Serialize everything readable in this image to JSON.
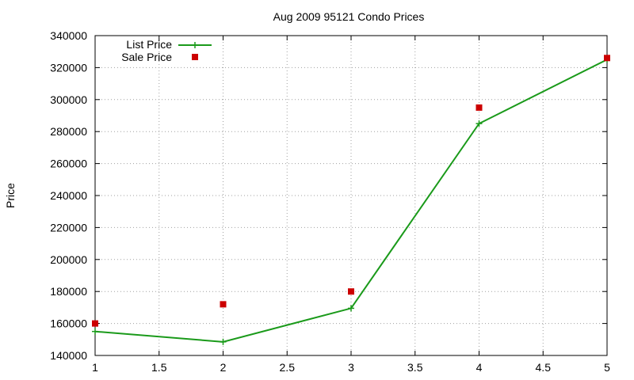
{
  "chart_data": {
    "type": "line",
    "title": "Aug 2009 95121 Condo Prices",
    "xlabel": "",
    "ylabel": "Price",
    "xlim": [
      1,
      5
    ],
    "ylim": [
      140000,
      340000
    ],
    "x_ticks": [
      "1",
      "1.5",
      "2",
      "2.5",
      "3",
      "3.5",
      "4",
      "4.5",
      "5"
    ],
    "y_ticks": [
      "140000",
      "160000",
      "180000",
      "200000",
      "220000",
      "240000",
      "260000",
      "280000",
      "300000",
      "320000",
      "340000"
    ],
    "grid": true,
    "legend_position": "top-left",
    "series": [
      {
        "name": "List Price",
        "style": "linespoints",
        "marker": "plus",
        "color": "#1a9a1a",
        "x": [
          1,
          2,
          3,
          4,
          5
        ],
        "values": [
          155000,
          148500,
          169500,
          285000,
          325000
        ]
      },
      {
        "name": "Sale Price",
        "style": "points",
        "marker": "square",
        "color": "#cc0000",
        "x": [
          1,
          2,
          3,
          4,
          5
        ],
        "values": [
          160000,
          172000,
          180000,
          295000,
          326000
        ]
      }
    ]
  }
}
